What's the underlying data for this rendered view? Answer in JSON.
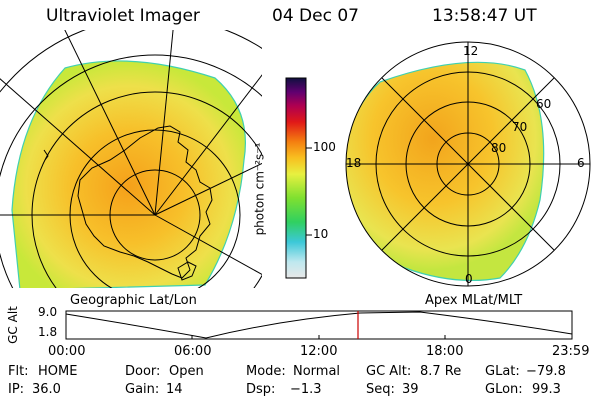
{
  "header": {
    "title": "Ultraviolet Imager",
    "date": "04 Dec 07",
    "time": "13:58:47 UT"
  },
  "left_panel": {
    "caption": "Geographic Lat/Lon"
  },
  "right_panel": {
    "caption": "Apex MLat/MLT",
    "mlt_labels": {
      "top": "12",
      "left": "18",
      "right": "6",
      "bottom": "0"
    },
    "mlat_labels": [
      "60",
      "70",
      "80"
    ]
  },
  "colorbar": {
    "unit_label": "photon cm⁻²s⁻¹",
    "ticks": [
      "100",
      "10"
    ]
  },
  "altitude_plot": {
    "ylabel": "GC Alt",
    "yticks": [
      "9.0",
      "1.8"
    ],
    "xticks": [
      "00:00",
      "06:00",
      "12:00",
      "18:00",
      "23:59"
    ],
    "marker_color": "#cc0000"
  },
  "status": {
    "flt_label": "Flt:",
    "flt_value": "HOME",
    "door_label": "Door:",
    "door_value": "Open",
    "mode_label": "Mode:",
    "mode_value": "Normal",
    "gcalt_label": "GC Alt:",
    "gcalt_value": "8.7 Re",
    "glat_label": "GLat:",
    "glat_value": "−79.8",
    "ip_label": "IP:",
    "ip_value": "36.0",
    "gain_label": "Gain:",
    "gain_value": "14",
    "dsp_label": "Dsp:",
    "dsp_value": "−1.3",
    "seq_label": "Seq:",
    "seq_value": "39",
    "glon_label": "GLon:",
    "glon_value": "99.3"
  }
}
